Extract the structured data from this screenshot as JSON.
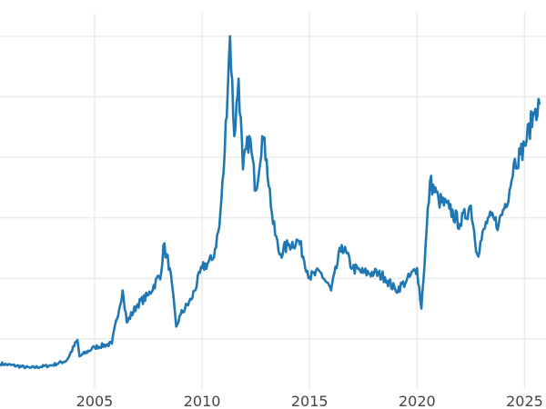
{
  "chart_data": {
    "type": "line",
    "title": "",
    "xlabel": "",
    "ylabel": "",
    "x_ticks": [
      "2005",
      "2010",
      "2015",
      "2020",
      "2025"
    ],
    "y_gridlines": [
      10,
      20,
      30,
      40,
      50,
      60
    ],
    "xlim": [
      2000.6,
      2025.7
    ],
    "ylim": [
      1.7,
      66
    ],
    "grid": true,
    "line_color": "#1f77b4",
    "grid_color": "#ebebeb",
    "series": [
      {
        "x": [
          2000.6,
          2002,
          2003,
          2003.7,
          2004.2,
          2004.3,
          2005,
          2005.8,
          2006.3,
          2006.5,
          2007,
          2007.5,
          2008.1,
          2008.2,
          2008.5,
          2008.8,
          2009,
          2009.5,
          2010,
          2010.5,
          2010.8,
          2011.0,
          2011.3,
          2011.5,
          2011.7,
          2011.9,
          2012.2,
          2012.5,
          2012.8,
          2013.0,
          2013.3,
          2013.6,
          2014,
          2014.5,
          2015,
          2015.5,
          2016,
          2016.5,
          2017,
          2017.5,
          2018,
          2018.5,
          2019,
          2019.5,
          2020,
          2020.2,
          2020.6,
          2021,
          2021.5,
          2022,
          2022.5,
          2022.8,
          2023.3,
          2023.8,
          2024.3,
          2024.5,
          2024.8,
          2025,
          2025.5,
          2025.7
        ],
        "y": [
          5.9,
          5.2,
          5.6,
          6.4,
          9.8,
          7.1,
          8.6,
          9.2,
          18,
          12.7,
          15.7,
          17.2,
          21,
          25.5,
          21.7,
          12,
          14,
          16.5,
          21.7,
          23.2,
          28.5,
          37.5,
          60,
          43.5,
          53,
          38,
          43.5,
          34.5,
          43.5,
          39.7,
          29,
          24,
          25.5,
          26.2,
          20.2,
          21,
          18,
          25.5,
          21.7,
          20.9,
          20.9,
          20.2,
          18,
          19.5,
          21.7,
          15,
          36,
          33,
          31.5,
          29,
          32,
          24,
          30,
          29,
          34.5,
          39,
          40.5,
          42,
          48,
          48.7
        ]
      }
    ]
  }
}
